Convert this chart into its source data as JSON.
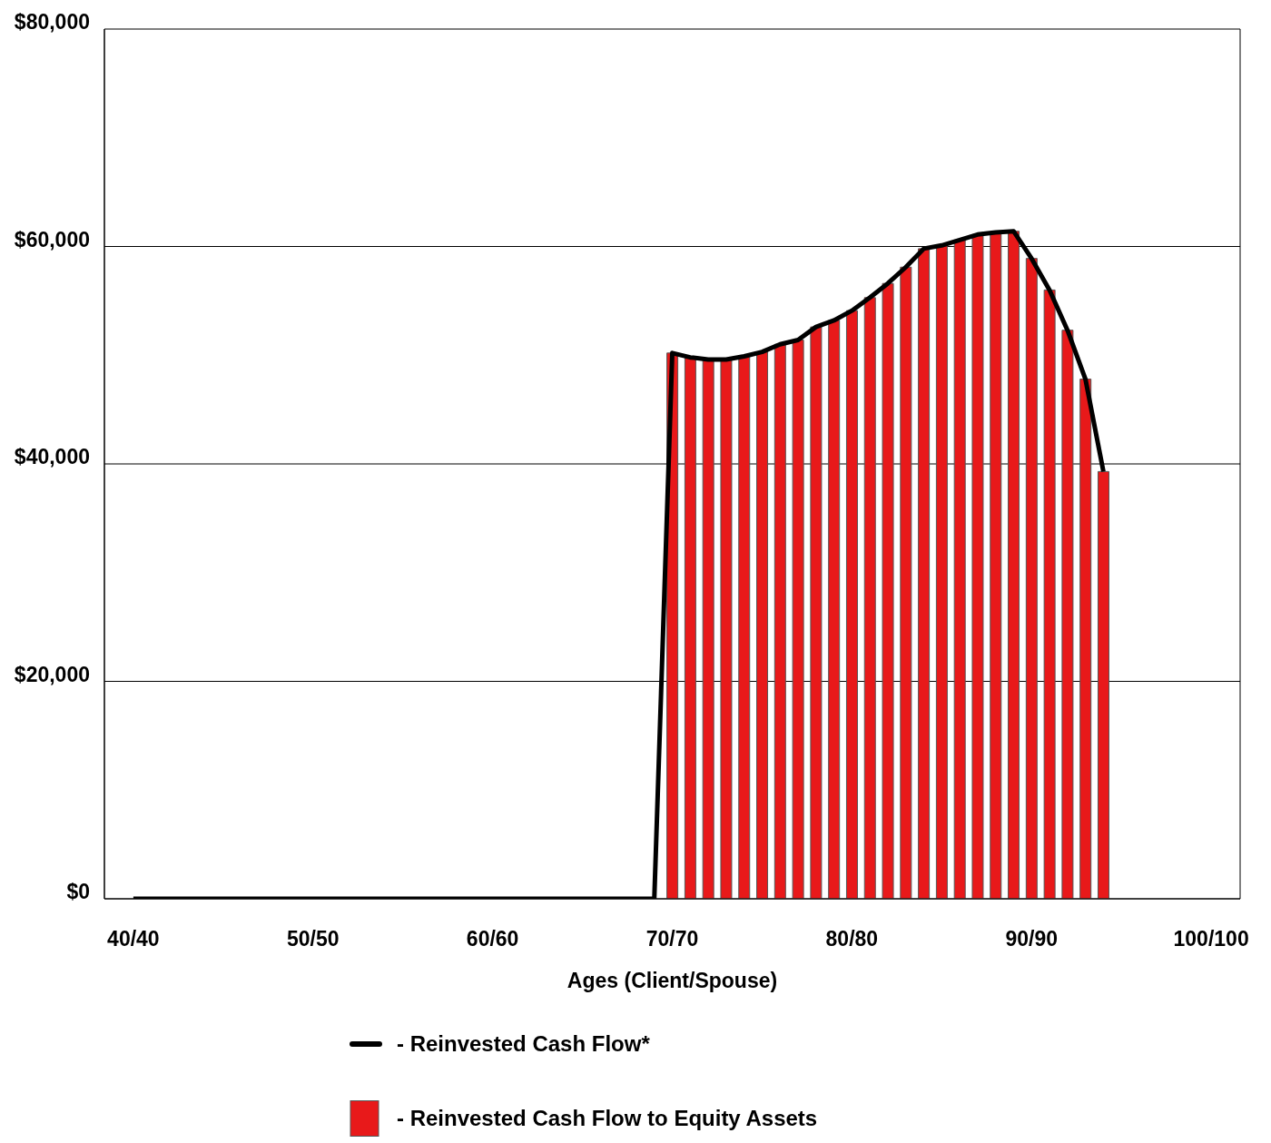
{
  "chart_data": {
    "type": "bar",
    "xlabel": "Ages (Client/Spouse)",
    "categories": [
      "40/40",
      null,
      null,
      null,
      null,
      null,
      null,
      null,
      null,
      null,
      "50/50",
      null,
      null,
      null,
      null,
      null,
      null,
      null,
      null,
      null,
      "60/60",
      null,
      null,
      null,
      null,
      null,
      null,
      null,
      null,
      null,
      "70/70",
      null,
      null,
      null,
      null,
      null,
      null,
      null,
      null,
      null,
      "80/80",
      null,
      null,
      null,
      null,
      null,
      null,
      null,
      null,
      null,
      "90/90",
      null,
      null,
      null,
      null,
      null,
      null,
      null,
      null,
      null,
      "100/100"
    ],
    "series": [
      {
        "name": "- Reinvested Cash Flow*",
        "type": "line",
        "color": "#000000",
        "values": [
          0,
          0,
          0,
          0,
          0,
          0,
          0,
          0,
          0,
          0,
          0,
          0,
          0,
          0,
          0,
          0,
          0,
          0,
          0,
          0,
          0,
          0,
          0,
          0,
          0,
          0,
          0,
          0,
          0,
          0,
          50200,
          49800,
          49600,
          49600,
          49900,
          50300,
          51000,
          51400,
          52600,
          53200,
          54100,
          55300,
          56600,
          58100,
          59800,
          60100,
          60600,
          61100,
          61300,
          61400,
          58900,
          56000,
          52300,
          47800,
          39300,
          null,
          null,
          null,
          null,
          null,
          null
        ]
      },
      {
        "name": "- Reinvested Cash Flow to Equity Assets",
        "color": "#e8191a",
        "values": [
          null,
          null,
          null,
          null,
          null,
          null,
          null,
          null,
          null,
          null,
          null,
          null,
          null,
          null,
          null,
          null,
          null,
          null,
          null,
          null,
          null,
          null,
          null,
          null,
          null,
          null,
          null,
          null,
          null,
          null,
          50200,
          49800,
          49600,
          49600,
          49900,
          50300,
          51000,
          51400,
          52600,
          53200,
          54100,
          55300,
          56600,
          58100,
          59800,
          60100,
          60600,
          61100,
          61300,
          61400,
          58900,
          56000,
          52300,
          47800,
          39300,
          null,
          null,
          null,
          null,
          null,
          null
        ]
      }
    ],
    "ylim": [
      0,
      80000
    ],
    "yticks": [
      {
        "value": 0,
        "label": "$0"
      },
      {
        "value": 20000,
        "label": "$20,000"
      },
      {
        "value": 40000,
        "label": "$40,000"
      },
      {
        "value": 60000,
        "label": "$60,000"
      },
      {
        "value": 80000,
        "label": "$80,000"
      }
    ],
    "grid": "y",
    "legend": "bottom",
    "line_style": "solid",
    "marker": "none"
  }
}
